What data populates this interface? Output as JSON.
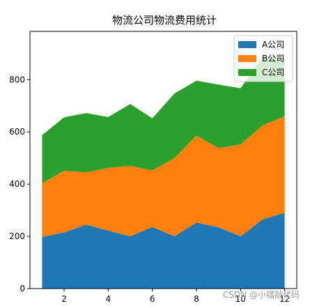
{
  "chart_data": {
    "type": "area",
    "stacked": true,
    "title": "物流公司物流费用统计",
    "xlabel": "",
    "ylabel": "",
    "x": [
      1,
      2,
      3,
      4,
      5,
      6,
      7,
      8,
      9,
      10,
      11,
      12
    ],
    "xlim": [
      0.45,
      12.55
    ],
    "ylim": [
      0,
      985
    ],
    "xticks": [
      2,
      4,
      6,
      8,
      10,
      12
    ],
    "yticks": [
      0,
      200,
      400,
      600,
      800
    ],
    "grid": false,
    "legend_position": "top-right",
    "series": [
      {
        "name": "A公司",
        "color": "#1f77b4",
        "values": [
          198,
          215,
          245,
          222,
          200,
          236,
          200,
          253,
          235,
          200,
          265,
          290
        ]
      },
      {
        "name": "B公司",
        "color": "#ff7f0e",
        "values": [
          205,
          236,
          200,
          240,
          270,
          216,
          300,
          333,
          303,
          352,
          360,
          370
        ]
      },
      {
        "name": "C公司",
        "color": "#2ca02c",
        "values": [
          185,
          205,
          227,
          195,
          237,
          200,
          247,
          210,
          243,
          215,
          262,
          225
        ]
      }
    ]
  },
  "watermark": "CSDN @小镭敲代码"
}
